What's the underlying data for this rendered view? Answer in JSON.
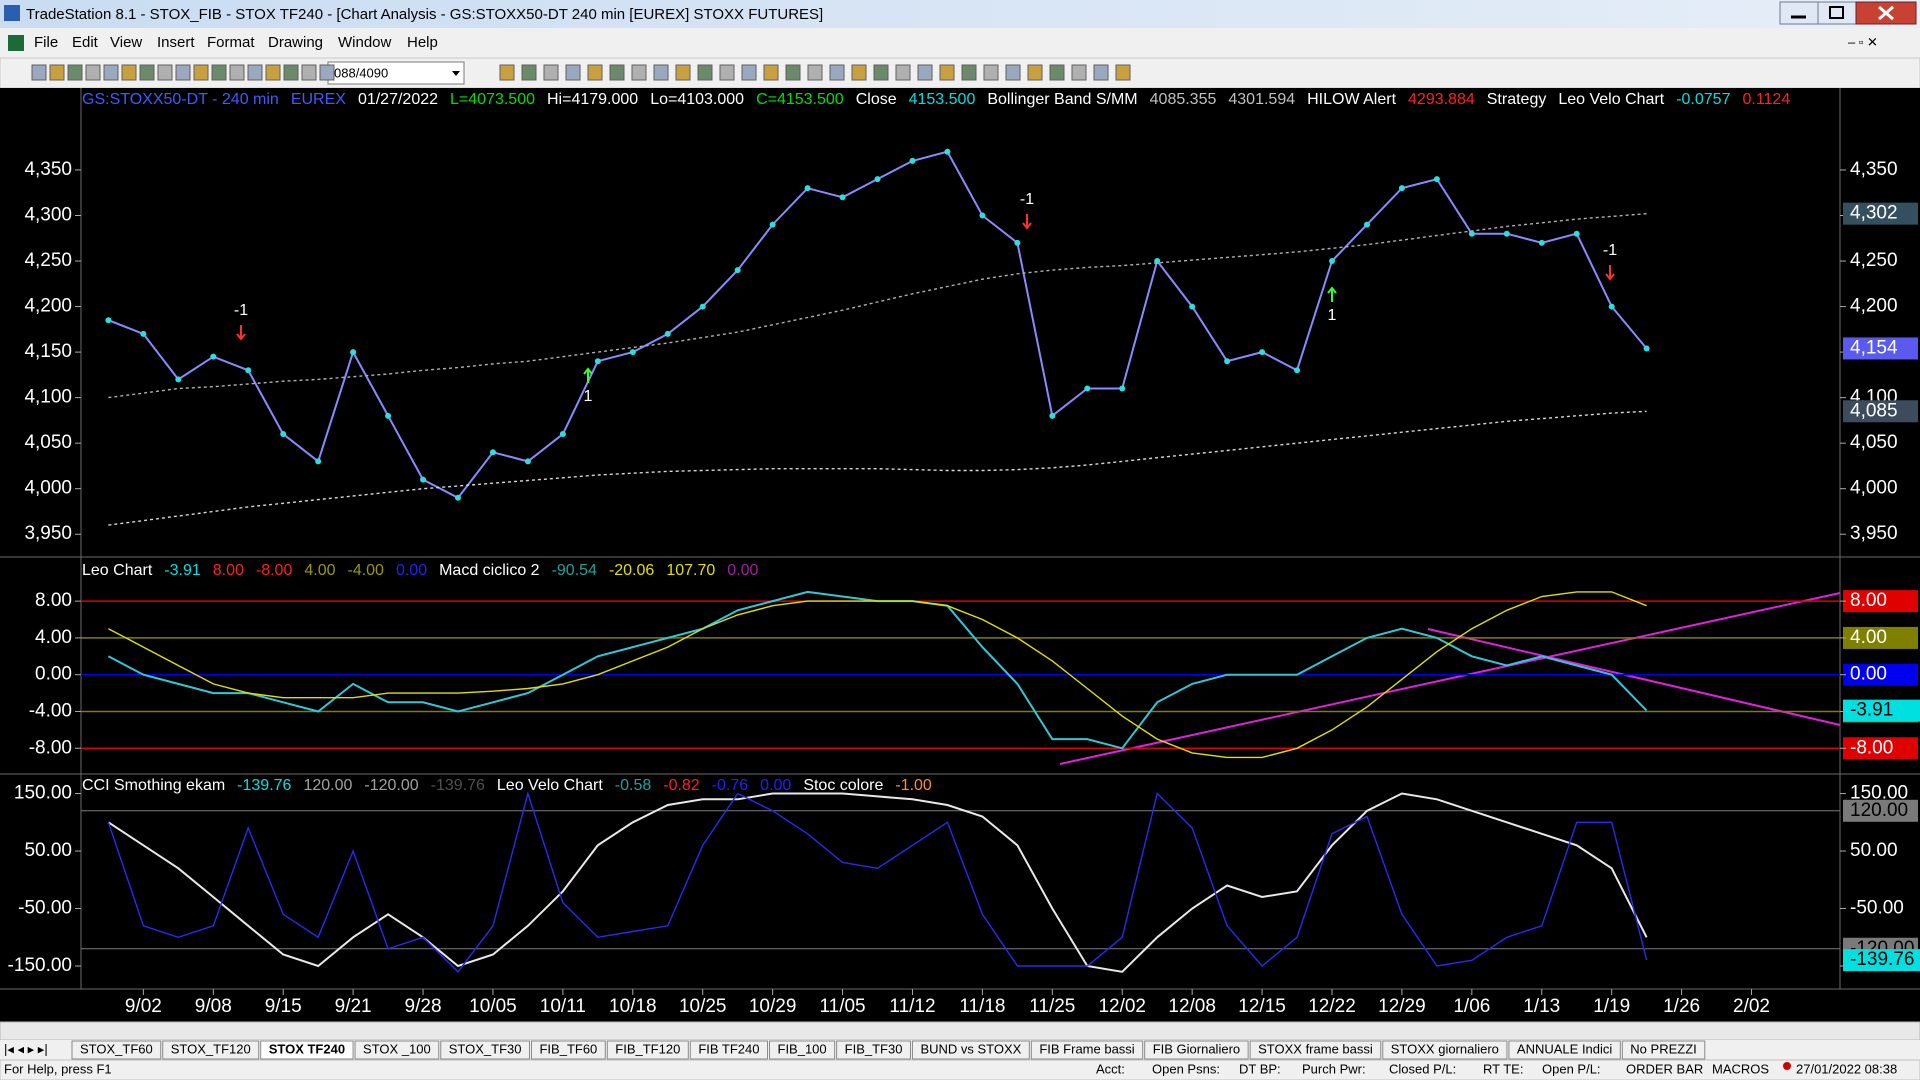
{
  "window": {
    "title": "TradeStation 8.1 - STOX_FIB - STOX TF240 - [Chart Analysis - GS:STOXX50-DT  240 min  [EUREX] STOXX FUTURES]",
    "menu": [
      "File",
      "Edit",
      "View",
      "Insert",
      "Format",
      "Drawing",
      "Window",
      "Help"
    ],
    "symbol_box": "088/4090"
  },
  "chart_data": [
    {
      "type": "line",
      "header": [
        {
          "text": "GS:STOXX50-DT - 240 min",
          "color": "#3d5cff"
        },
        {
          "text": "EUREX",
          "color": "#3d5cff"
        },
        {
          "text": "01/27/2022",
          "color": "#ffffff"
        },
        {
          "text": "L=4073.500",
          "color": "#00e000"
        },
        {
          "text": "Hi=4179.000",
          "color": "#ffffff"
        },
        {
          "text": "Lo=4103.000",
          "color": "#ffffff"
        },
        {
          "text": "C=4153.500",
          "color": "#00e000"
        },
        {
          "text": "Close",
          "color": "#ffffff"
        },
        {
          "text": "4153.500",
          "color": "#00e0e0"
        },
        {
          "text": "Bollinger Band S/MM",
          "color": "#ffffff"
        },
        {
          "text": "4085.355",
          "color": "#c0c0c0"
        },
        {
          "text": "4301.594",
          "color": "#c0c0c0"
        },
        {
          "text": "HILOW Alert",
          "color": "#ffffff"
        },
        {
          "text": "4293.884",
          "color": "#ff2020"
        },
        {
          "text": "Strategy",
          "color": "#ffffff"
        },
        {
          "text": "Leo Velo Chart",
          "color": "#ffffff"
        },
        {
          "text": "-0.0757",
          "color": "#00e0e0"
        },
        {
          "text": "0.1124",
          "color": "#ff2020"
        }
      ],
      "categories": [
        null,
        "9/02",
        null,
        "9/08",
        null,
        "9/15",
        null,
        "9/21",
        null,
        "9/28",
        null,
        "10/05",
        null,
        "10/11",
        null,
        "10/18",
        null,
        "10/25",
        null,
        "10/29",
        null,
        "11/05",
        null,
        "11/12",
        null,
        "11/18",
        null,
        "11/25",
        null,
        "12/02",
        null,
        "12/08",
        null,
        "12/15",
        null,
        "12/22",
        null,
        "12/29",
        null,
        "1/06",
        null,
        "1/13",
        null,
        "1/19",
        null,
        "1/26",
        null,
        "2/02"
      ],
      "series": [
        {
          "color": "#8a8aff",
          "marker_color": "#29e0e0",
          "values": [
            4185,
            4170,
            4120,
            4145,
            4130,
            4060,
            4030,
            4150,
            4080,
            4010,
            3990,
            4040,
            4030,
            4060,
            4140,
            4150,
            4170,
            4200,
            4240,
            4290,
            4330,
            4320,
            4340,
            4360,
            4370,
            4300,
            4270,
            4080,
            4110,
            4110,
            4250,
            4200,
            4140,
            4150,
            4130,
            4250,
            4290,
            4330,
            4340,
            4280,
            4280,
            4270,
            4280,
            4200,
            4154,
            null,
            null,
            null
          ]
        },
        {
          "color": "#b0b0b0",
          "values": [
            4100,
            4105,
            4110,
            4112,
            4115,
            4118,
            4120,
            4123,
            4126,
            4130,
            4133,
            4137,
            4140,
            4145,
            4150,
            4155,
            4160,
            4166,
            4172,
            4180,
            4188,
            4196,
            4205,
            4214,
            4222,
            4230,
            4236,
            4240,
            4243,
            4245,
            4248,
            4251,
            4254,
            4257,
            4260,
            4264,
            4268,
            4273,
            4278,
            4283,
            4288,
            4292,
            4296,
            4299,
            4302,
            null,
            null,
            null
          ]
        },
        {
          "color": "#d8d8d8",
          "values": [
            3960,
            3965,
            3970,
            3975,
            3980,
            3984,
            3988,
            3992,
            3996,
            4000,
            4003,
            4006,
            4009,
            4012,
            4015,
            4017,
            4019,
            4020,
            4021,
            4022,
            4022,
            4022,
            4022,
            4021,
            4020,
            4020,
            4021,
            4023,
            4026,
            4030,
            4034,
            4038,
            4042,
            4046,
            4050,
            4054,
            4058,
            4062,
            4066,
            4070,
            4074,
            4077,
            4080,
            4083,
            4085,
            null,
            null,
            null
          ]
        }
      ],
      "ylim": [
        3925,
        4440
      ],
      "yticks": [
        {
          "value": 3950,
          "label": "3,950"
        },
        {
          "value": 4000,
          "label": "4,000"
        },
        {
          "value": 4050,
          "label": "4,050"
        },
        {
          "value": 4100,
          "label": "4,100"
        },
        {
          "value": 4150,
          "label": "4,150"
        },
        {
          "value": 4200,
          "label": "4,200"
        },
        {
          "value": 4250,
          "label": "4,250"
        },
        {
          "value": 4300,
          "label": "4,300"
        },
        {
          "value": 4350,
          "label": "4,350"
        }
      ],
      "price_markers": [
        {
          "value": 4302,
          "label": "4,302",
          "color": "#34505e"
        },
        {
          "value": 4154,
          "label": "4,154",
          "color": "#5a5af0"
        },
        {
          "value": 4085,
          "label": "4,085",
          "color": "#3c4c5c"
        }
      ],
      "annotations": [
        "-1",
        "1",
        "-1",
        "1",
        "-1"
      ]
    },
    {
      "type": "line",
      "header": [
        {
          "text": "Leo Chart",
          "color": "#ffffff"
        },
        {
          "text": "-3.91",
          "color": "#00e0e0"
        },
        {
          "text": "8.00",
          "color": "#ff2020"
        },
        {
          "text": "-8.00",
          "color": "#ff2020"
        },
        {
          "text": "4.00",
          "color": "#9a9a00"
        },
        {
          "text": "-4.00",
          "color": "#9a9a00"
        },
        {
          "text": "0.00",
          "color": "#2020ff"
        },
        {
          "text": "Macd ciclico 2",
          "color": "#ffffff"
        },
        {
          "text": "-90.54",
          "color": "#20a0a0"
        },
        {
          "text": "-20.06",
          "color": "#e0e000"
        },
        {
          "text": "107.70",
          "color": "#e0e000"
        },
        {
          "text": "0.00",
          "color": "#a020a0"
        }
      ],
      "series": [
        {
          "color": "#30c8d8",
          "values": [
            2,
            0,
            -1,
            -2,
            -2,
            -3,
            -4,
            -1,
            -3,
            -3,
            -4,
            -3,
            -2,
            0,
            2,
            3,
            4,
            5,
            7,
            8,
            9,
            8.5,
            8,
            8,
            7.5,
            3,
            -1,
            -7,
            -7,
            -8,
            -3,
            -1,
            0,
            0,
            0,
            2,
            4,
            5,
            4,
            2,
            1,
            2,
            1,
            0,
            -3.91,
            null,
            null,
            null
          ]
        },
        {
          "color": "#e0e000",
          "values": [
            5,
            3,
            1,
            -1,
            -2,
            -2.5,
            -2.5,
            -2.5,
            -2,
            -2,
            -2,
            -1.8,
            -1.5,
            -1,
            0,
            1.5,
            3,
            5,
            6.5,
            7.5,
            8,
            8,
            8,
            8,
            7.5,
            6,
            4,
            1.5,
            -1.5,
            -4.5,
            -7,
            -8.5,
            -9,
            -9,
            -8,
            -6,
            -3.5,
            -0.5,
            2.5,
            5,
            7,
            8.5,
            9,
            9,
            7.5,
            null,
            null,
            null
          ]
        }
      ],
      "ylim": [
        -10.8,
        12.8
      ],
      "yticks": [
        {
          "value": -8,
          "label": "-8.00"
        },
        {
          "value": -4,
          "label": "-4.00"
        },
        {
          "value": 0,
          "label": "0.00"
        },
        {
          "value": 4,
          "label": "4.00"
        },
        {
          "value": 8,
          "label": "8.00"
        }
      ],
      "tick_colors": [
        "#e00000",
        "#808000",
        "#0000f0",
        "#808000",
        "#e00000"
      ],
      "last_value": -3.91,
      "last_color": "#00e0e0"
    },
    {
      "type": "line",
      "header": [
        {
          "text": "CCI Smothing ekam",
          "color": "#ffffff"
        },
        {
          "text": "-139.76",
          "color": "#00e0e0"
        },
        {
          "text": "120.00",
          "color": "#a0a0a0"
        },
        {
          "text": "-120.00",
          "color": "#a0a0a0"
        },
        {
          "text": "-139.76",
          "color": "#505050"
        },
        {
          "text": "Leo Velo Chart",
          "color": "#ffffff"
        },
        {
          "text": "-0.58",
          "color": "#20a0a0"
        },
        {
          "text": "-0.82",
          "color": "#ff2020"
        },
        {
          "text": "-0.76",
          "color": "#2020ff"
        },
        {
          "text": "0.00",
          "color": "#2020ff"
        },
        {
          "text": "Stoc colore",
          "color": "#ffffff"
        },
        {
          "text": "-1.00",
          "color": "#ff9020"
        }
      ],
      "series": [
        {
          "color": "#e8e8e8",
          "values": [
            100,
            60,
            20,
            -30,
            -80,
            -130,
            -150,
            -100,
            -60,
            -100,
            -150,
            -130,
            -80,
            -20,
            60,
            100,
            130,
            140,
            140,
            150,
            150,
            150,
            145,
            140,
            130,
            110,
            60,
            -50,
            -150,
            -160,
            -100,
            -50,
            -10,
            -30,
            -20,
            60,
            120,
            150,
            140,
            120,
            100,
            80,
            60,
            20,
            -100,
            null,
            null,
            null
          ]
        },
        {
          "color": "#2a2af0",
          "values": [
            100,
            -80,
            -100,
            -80,
            90,
            -60,
            -100,
            50,
            -120,
            -100,
            -160,
            -80,
            150,
            -40,
            -100,
            -90,
            -80,
            60,
            150,
            120,
            80,
            30,
            20,
            60,
            100,
            -60,
            -150,
            -150,
            -150,
            -100,
            150,
            90,
            -80,
            -150,
            -100,
            80,
            110,
            -60,
            -150,
            -140,
            -100,
            -80,
            100,
            100,
            -139.76,
            null,
            null,
            null
          ]
        }
      ],
      "ylim": [
        -190,
        184
      ],
      "yticks": [
        {
          "value": -150,
          "label": "-150.00"
        },
        {
          "value": -50,
          "label": "-50.00"
        },
        {
          "value": 50,
          "label": "50.00"
        },
        {
          "value": 150,
          "label": "150.00"
        }
      ],
      "levels": [
        {
          "value": 120,
          "label": "120.00"
        },
        {
          "value": -120,
          "label": "-120.00"
        }
      ],
      "level_color": "#7a7a7a",
      "last_value": -139.76,
      "last_color": "#00e0e0"
    }
  ],
  "tabs": [
    "STOX_TF60",
    "STOX_TF120",
    "STOX TF240",
    "STOX _100",
    "STOX_TF30",
    "FIB_TF60",
    "FIB_TF120",
    "FIB TF240",
    "FIB_100",
    "FIB_TF30",
    "BUND vs STOXX",
    "FIB Frame bassi",
    "FIB Giornaliero",
    "STOXX frame bassi",
    "STOXX giornaliero",
    "ANNUALE Indici",
    "No PREZZI"
  ],
  "active_tab": 2,
  "status": {
    "help": "For Help, press F1",
    "fields": [
      "Acct:",
      "Open Psns:",
      "DT BP:",
      "Purch Pwr:",
      "Closed P/L:",
      "RT TE:",
      "Open P/L:"
    ],
    "order_bar": "ORDER BAR",
    "macros": "MACROS",
    "clock": "27/01/2022 08:38"
  }
}
